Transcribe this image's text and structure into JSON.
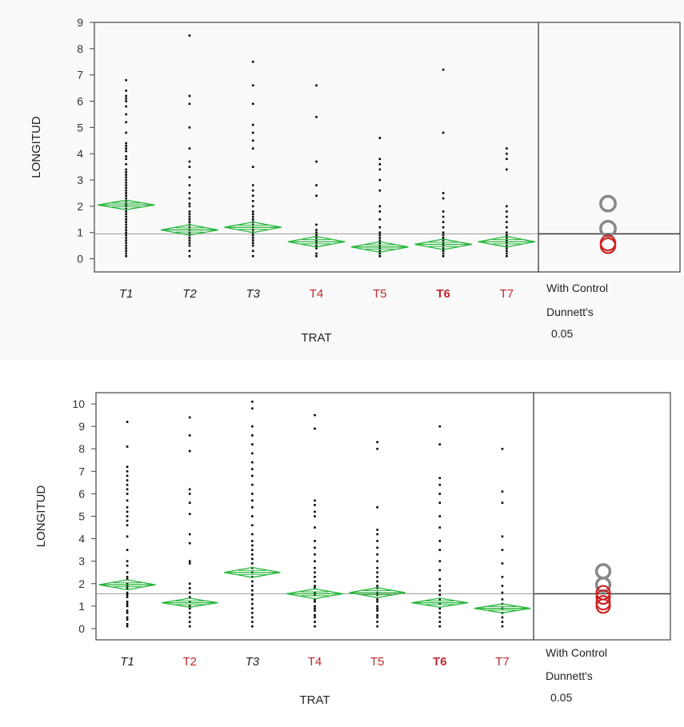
{
  "chart_data": [
    {
      "type": "scatter",
      "subtype": "oneway-means-diamonds",
      "ylabel": "LONGITUD",
      "xlabel": "TRAT",
      "ylim": [
        -0.5,
        9
      ],
      "yticks": [
        0,
        1,
        2,
        3,
        4,
        5,
        6,
        7,
        8,
        9
      ],
      "grand_mean": 0.95,
      "categories": [
        {
          "label": "T1",
          "significant": false,
          "bold": false,
          "mean": 2.05,
          "ci": 0.18,
          "points": [
            0.1,
            0.2,
            0.3,
            0.4,
            0.5,
            0.6,
            0.7,
            0.8,
            0.9,
            1.0,
            1.1,
            1.2,
            1.3,
            1.4,
            1.5,
            1.6,
            1.7,
            1.8,
            1.9,
            2.0,
            2.1,
            2.2,
            2.3,
            2.4,
            2.5,
            2.6,
            2.7,
            2.8,
            2.9,
            3.0,
            3.1,
            3.2,
            3.3,
            3.4,
            3.6,
            3.8,
            3.9,
            4.1,
            4.2,
            4.3,
            4.4,
            4.8,
            5.2,
            5.5,
            5.8,
            6.0,
            6.1,
            6.2,
            6.4,
            6.8
          ]
        },
        {
          "label": "T2",
          "significant": false,
          "bold": false,
          "mean": 1.1,
          "ci": 0.2,
          "points": [
            0.1,
            0.3,
            0.5,
            0.6,
            0.7,
            0.8,
            0.9,
            1.0,
            1.1,
            1.2,
            1.3,
            1.4,
            1.5,
            1.6,
            1.7,
            1.8,
            2.0,
            2.1,
            2.3,
            2.5,
            2.8,
            3.1,
            3.5,
            3.7,
            4.2,
            5.0,
            5.9,
            6.2,
            8.5
          ]
        },
        {
          "label": "T3",
          "significant": false,
          "bold": false,
          "mean": 1.2,
          "ci": 0.2,
          "points": [
            0.1,
            0.3,
            0.5,
            0.6,
            0.7,
            0.8,
            0.9,
            1.0,
            1.1,
            1.2,
            1.3,
            1.4,
            1.5,
            1.6,
            1.7,
            1.8,
            2.0,
            2.2,
            2.4,
            2.6,
            2.8,
            3.5,
            4.2,
            4.5,
            4.8,
            5.1,
            5.9,
            6.6,
            7.5
          ]
        },
        {
          "label": "T4",
          "significant": true,
          "bold": false,
          "mean": 0.65,
          "ci": 0.2,
          "points": [
            0.1,
            0.2,
            0.4,
            0.5,
            0.6,
            0.7,
            0.8,
            0.9,
            1.0,
            1.1,
            1.3,
            2.4,
            2.8,
            3.7,
            5.4,
            6.6
          ]
        },
        {
          "label": "T5",
          "significant": true,
          "bold": false,
          "mean": 0.45,
          "ci": 0.2,
          "points": [
            0.1,
            0.2,
            0.3,
            0.4,
            0.5,
            0.6,
            0.7,
            0.8,
            0.9,
            1.0,
            1.2,
            1.5,
            1.8,
            2.0,
            2.6,
            3.0,
            3.4,
            3.6,
            3.8,
            4.6
          ]
        },
        {
          "label": "T6",
          "significant": true,
          "bold": true,
          "mean": 0.55,
          "ci": 0.2,
          "points": [
            0.1,
            0.2,
            0.3,
            0.4,
            0.5,
            0.6,
            0.7,
            0.8,
            0.9,
            1.0,
            1.2,
            1.4,
            1.6,
            1.8,
            2.3,
            2.5,
            4.8,
            7.2
          ]
        },
        {
          "label": "T7",
          "significant": true,
          "bold": false,
          "mean": 0.65,
          "ci": 0.2,
          "points": [
            0.1,
            0.2,
            0.3,
            0.4,
            0.5,
            0.6,
            0.7,
            0.8,
            0.9,
            1.0,
            1.2,
            1.4,
            1.6,
            1.8,
            2.0,
            3.4,
            3.8,
            4.0,
            4.2
          ]
        }
      ],
      "comparison_circles": [
        {
          "center": 2.1,
          "radius": 0.28,
          "color": "#888888"
        },
        {
          "center": 1.15,
          "radius": 0.28,
          "color": "#888888"
        },
        {
          "center": 0.6,
          "radius": 0.28,
          "color": "#cc2222"
        },
        {
          "center": 0.5,
          "radius": 0.28,
          "color": "#cc2222"
        }
      ],
      "annotation": [
        "With Control",
        "Dunnett's",
        "0.05"
      ]
    },
    {
      "type": "scatter",
      "subtype": "oneway-means-diamonds",
      "ylabel": "LONGITUD",
      "xlabel": "TRAT",
      "ylim": [
        -0.5,
        10.5
      ],
      "yticks": [
        0,
        1,
        2,
        3,
        4,
        5,
        6,
        7,
        8,
        9,
        10
      ],
      "grand_mean": 1.55,
      "categories": [
        {
          "label": "T1",
          "significant": false,
          "bold": false,
          "mean": 1.95,
          "ci": 0.22,
          "points": [
            0.1,
            0.2,
            0.4,
            0.5,
            0.7,
            0.8,
            1.0,
            1.1,
            1.2,
            1.4,
            1.5,
            1.6,
            1.8,
            1.9,
            2.0,
            2.2,
            2.3,
            2.5,
            2.8,
            3.0,
            3.5,
            4.1,
            4.6,
            4.8,
            5.0,
            5.2,
            5.4,
            5.7,
            6.0,
            6.2,
            6.4,
            6.6,
            6.8,
            7.0,
            7.2,
            8.1,
            9.2
          ]
        },
        {
          "label": "T2",
          "significant": true,
          "bold": false,
          "mean": 1.15,
          "ci": 0.2,
          "points": [
            0.1,
            0.3,
            0.5,
            0.7,
            0.9,
            1.0,
            1.2,
            1.4,
            1.6,
            1.8,
            2.0,
            2.9,
            3.0,
            3.8,
            4.2,
            5.1,
            5.6,
            6.0,
            6.2,
            7.9,
            8.6,
            9.4
          ]
        },
        {
          "label": "T3",
          "significant": false,
          "bold": false,
          "mean": 2.5,
          "ci": 0.22,
          "points": [
            0.1,
            0.3,
            0.5,
            0.7,
            0.9,
            1.1,
            1.3,
            1.5,
            1.7,
            1.9,
            2.1,
            2.3,
            2.5,
            2.7,
            2.9,
            3.1,
            3.3,
            3.5,
            3.7,
            3.9,
            4.2,
            4.6,
            5.0,
            5.4,
            5.7,
            6.0,
            6.4,
            6.8,
            7.1,
            7.4,
            7.8,
            8.2,
            8.6,
            9.0,
            9.8,
            10.1
          ]
        },
        {
          "label": "T4",
          "significant": true,
          "bold": false,
          "mean": 1.55,
          "ci": 0.22,
          "points": [
            0.1,
            0.3,
            0.5,
            0.6,
            0.8,
            0.9,
            1.0,
            1.2,
            1.3,
            1.5,
            1.6,
            1.8,
            1.9,
            2.1,
            2.3,
            2.5,
            2.7,
            3.0,
            3.3,
            3.6,
            3.9,
            4.5,
            5.0,
            5.2,
            5.5,
            5.7,
            8.9,
            9.5
          ]
        },
        {
          "label": "T5",
          "significant": true,
          "bold": false,
          "mean": 1.6,
          "ci": 0.22,
          "points": [
            0.1,
            0.3,
            0.5,
            0.6,
            0.8,
            0.9,
            1.0,
            1.2,
            1.3,
            1.5,
            1.6,
            1.8,
            1.9,
            2.1,
            2.3,
            2.5,
            2.7,
            3.0,
            3.3,
            3.6,
            3.9,
            4.2,
            4.4,
            5.4,
            8.0,
            8.3
          ]
        },
        {
          "label": "T6",
          "significant": true,
          "bold": true,
          "mean": 1.15,
          "ci": 0.2,
          "points": [
            0.1,
            0.3,
            0.5,
            0.7,
            0.9,
            1.1,
            1.3,
            1.5,
            1.7,
            1.9,
            2.2,
            2.6,
            3.0,
            3.5,
            3.9,
            4.5,
            5.0,
            5.6,
            6.0,
            6.4,
            6.7,
            8.2,
            9.0
          ]
        },
        {
          "label": "T7",
          "significant": true,
          "bold": false,
          "mean": 0.9,
          "ci": 0.2,
          "points": [
            0.1,
            0.3,
            0.5,
            0.7,
            0.9,
            1.1,
            1.3,
            1.6,
            1.9,
            2.3,
            2.9,
            3.5,
            4.1,
            5.6,
            6.1,
            8.0
          ]
        }
      ],
      "comparison_circles": [
        {
          "center": 2.55,
          "radius": 0.3,
          "color": "#888888"
        },
        {
          "center": 1.95,
          "radius": 0.3,
          "color": "#888888"
        },
        {
          "center": 1.6,
          "radius": 0.3,
          "color": "#cc2222"
        },
        {
          "center": 1.4,
          "radius": 0.3,
          "color": "#cc2222"
        },
        {
          "center": 1.15,
          "radius": 0.3,
          "color": "#cc2222"
        },
        {
          "center": 1.0,
          "radius": 0.3,
          "color": "#cc2222"
        }
      ],
      "annotation": [
        "With Control",
        "Dunnett's",
        "0.05"
      ]
    }
  ]
}
